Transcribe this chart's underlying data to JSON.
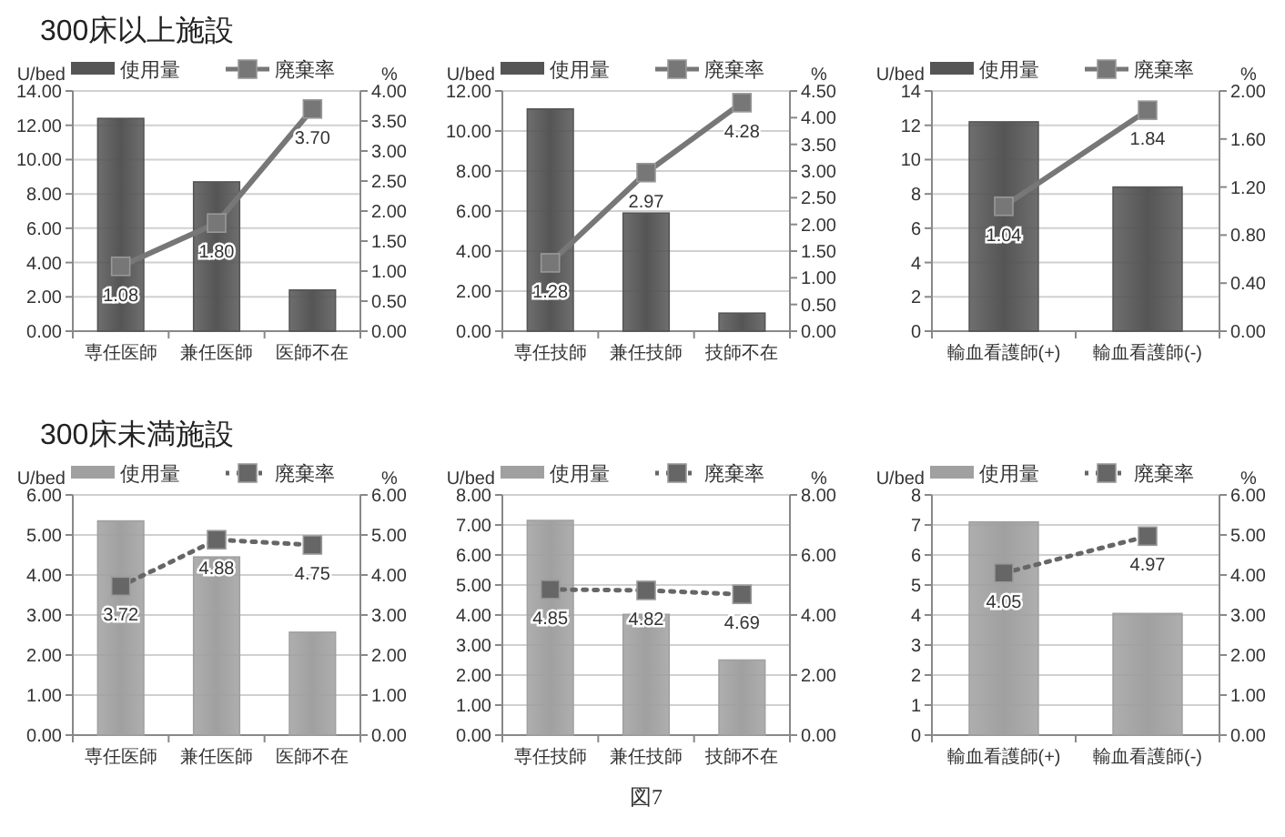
{
  "chart_data": [
    {
      "type": "bar",
      "title": "300床以上施設",
      "ylabel": "U/bed",
      "y2label": "%",
      "categories": [
        "専任医師",
        "兼任医師",
        "医師不在"
      ],
      "legend": "top",
      "grid": "y",
      "ylim": [
        0,
        14
      ],
      "yticks": [
        {
          "value": 0,
          "label": "0.00"
        },
        {
          "value": 2,
          "label": "2.00"
        },
        {
          "value": 4,
          "label": "4.00"
        },
        {
          "value": 6,
          "label": "6.00"
        },
        {
          "value": 8,
          "label": "8.00"
        },
        {
          "value": 10,
          "label": "10.00"
        },
        {
          "value": 12,
          "label": "12.00"
        },
        {
          "value": 14,
          "label": "14.00"
        }
      ],
      "y2lim": [
        0,
        4
      ],
      "y2ticks": [
        {
          "value": 0,
          "label": "0.00"
        },
        {
          "value": 0.5,
          "label": "0.50"
        },
        {
          "value": 1,
          "label": "1.00"
        },
        {
          "value": 1.5,
          "label": "1.50"
        },
        {
          "value": 2,
          "label": "2.00"
        },
        {
          "value": 2.5,
          "label": "2.50"
        },
        {
          "value": 3,
          "label": "3.00"
        },
        {
          "value": 3.5,
          "label": "3.50"
        },
        {
          "value": 4,
          "label": "4.00"
        }
      ],
      "series": [
        {
          "name": "使用量",
          "color": "#555555",
          "values": [
            12.4,
            8.7,
            2.4
          ]
        },
        {
          "name": "廃棄率",
          "type": "line",
          "axis": "y2",
          "color": "#777777",
          "marker": "square",
          "line_style": "solid",
          "values": [
            1.08,
            1.8,
            3.7
          ],
          "value_labels": [
            "1.08",
            "1.80",
            "3.70"
          ]
        }
      ]
    },
    {
      "type": "bar",
      "ylabel": "U/bed",
      "y2label": "%",
      "categories": [
        "専任技師",
        "兼任技師",
        "技師不在"
      ],
      "legend": "top",
      "grid": "y",
      "ylim": [
        0,
        12
      ],
      "yticks": [
        {
          "value": 0,
          "label": "0.00"
        },
        {
          "value": 2,
          "label": "2.00"
        },
        {
          "value": 4,
          "label": "4.00"
        },
        {
          "value": 6,
          "label": "6.00"
        },
        {
          "value": 8,
          "label": "8.00"
        },
        {
          "value": 10,
          "label": "10.00"
        },
        {
          "value": 12,
          "label": "12.00"
        }
      ],
      "y2lim": [
        0,
        4.5
      ],
      "y2ticks": [
        {
          "value": 0,
          "label": "0.00"
        },
        {
          "value": 0.5,
          "label": "0.50"
        },
        {
          "value": 1,
          "label": "1.00"
        },
        {
          "value": 1.5,
          "label": "1.50"
        },
        {
          "value": 2,
          "label": "2.00"
        },
        {
          "value": 2.5,
          "label": "2.50"
        },
        {
          "value": 3,
          "label": "3.00"
        },
        {
          "value": 3.5,
          "label": "3.50"
        },
        {
          "value": 4,
          "label": "4.00"
        },
        {
          "value": 4.5,
          "label": "4.50"
        }
      ],
      "series": [
        {
          "name": "使用量",
          "color": "#555555",
          "values": [
            11.1,
            5.9,
            0.9
          ]
        },
        {
          "name": "廃棄率",
          "type": "line",
          "axis": "y2",
          "color": "#777777",
          "marker": "square",
          "line_style": "solid",
          "values": [
            1.28,
            2.97,
            4.28
          ],
          "value_labels": [
            "1.28",
            "2.97",
            "4.28"
          ]
        }
      ]
    },
    {
      "type": "bar",
      "ylabel": "U/bed",
      "y2label": "%",
      "categories": [
        "輸血看護師(+)",
        "輸血看護師(-)"
      ],
      "legend": "top",
      "grid": "y",
      "ylim": [
        0,
        14
      ],
      "yticks": [
        0,
        2,
        4,
        6,
        8,
        10,
        12,
        14
      ],
      "y2lim": [
        0,
        2
      ],
      "y2ticks": [
        {
          "value": 0,
          "label": "0.00"
        },
        {
          "value": 0.4,
          "label": "0.40"
        },
        {
          "value": 0.8,
          "label": "0.80"
        },
        {
          "value": 1.2,
          "label": "1.20"
        },
        {
          "value": 1.6,
          "label": "1.60"
        },
        {
          "value": 2,
          "label": "2.00"
        }
      ],
      "series": [
        {
          "name": "使用量",
          "color": "#555555",
          "values": [
            12.2,
            8.4
          ]
        },
        {
          "name": "廃棄率",
          "type": "line",
          "axis": "y2",
          "color": "#777777",
          "marker": "square",
          "line_style": "solid",
          "values": [
            1.04,
            1.84
          ],
          "value_labels": [
            "1.04",
            "1.84"
          ]
        }
      ]
    },
    {
      "type": "bar",
      "title": "300床未満施設",
      "ylabel": "U/bed",
      "y2label": "%",
      "categories": [
        "専任医師",
        "兼任医師",
        "医師不在"
      ],
      "legend": "top",
      "grid": "y",
      "ylim": [
        0,
        6
      ],
      "yticks": [
        {
          "value": 0,
          "label": "0.00"
        },
        {
          "value": 1,
          "label": "1.00"
        },
        {
          "value": 2,
          "label": "2.00"
        },
        {
          "value": 3,
          "label": "3.00"
        },
        {
          "value": 4,
          "label": "4.00"
        },
        {
          "value": 5,
          "label": "5.00"
        },
        {
          "value": 6,
          "label": "6.00"
        }
      ],
      "y2lim": [
        0,
        6
      ],
      "y2ticks": [
        {
          "value": 0,
          "label": "0.00"
        },
        {
          "value": 1,
          "label": "1.00"
        },
        {
          "value": 2,
          "label": "2.00"
        },
        {
          "value": 3,
          "label": "3.00"
        },
        {
          "value": 4,
          "label": "4.00"
        },
        {
          "value": 5,
          "label": "5.00"
        },
        {
          "value": 6,
          "label": "6.00"
        }
      ],
      "series": [
        {
          "name": "使用量",
          "color": "#a0a0a0",
          "values": [
            5.35,
            4.45,
            2.57
          ]
        },
        {
          "name": "廃棄率",
          "type": "line",
          "axis": "y2",
          "color": "#666666",
          "marker": "square",
          "line_style": "dotted",
          "values": [
            3.72,
            4.88,
            4.75
          ],
          "value_labels": [
            "3.72",
            "4.88",
            "4.75"
          ]
        }
      ]
    },
    {
      "type": "bar",
      "ylabel": "U/bed",
      "y2label": "%",
      "categories": [
        "専任技師",
        "兼任技師",
        "技師不在"
      ],
      "legend": "top",
      "grid": "y",
      "annotations": [
        "図7"
      ],
      "ylim": [
        0,
        8
      ],
      "yticks": [
        {
          "value": 0,
          "label": "0.00"
        },
        {
          "value": 1,
          "label": "1.00"
        },
        {
          "value": 2,
          "label": "2.00"
        },
        {
          "value": 3,
          "label": "3.00"
        },
        {
          "value": 4,
          "label": "4.00"
        },
        {
          "value": 5,
          "label": "5.00"
        },
        {
          "value": 6,
          "label": "6.00"
        },
        {
          "value": 7,
          "label": "7.00"
        },
        {
          "value": 8,
          "label": "8.00"
        }
      ],
      "y2lim": [
        0,
        8
      ],
      "y2ticks": [
        {
          "value": 0,
          "label": "0.00"
        },
        {
          "value": 2,
          "label": "2.00"
        },
        {
          "value": 4,
          "label": "4.00"
        },
        {
          "value": 6,
          "label": "6.00"
        },
        {
          "value": 8,
          "label": "8.00"
        }
      ],
      "series": [
        {
          "name": "使用量",
          "color": "#a0a0a0",
          "values": [
            7.15,
            4.02,
            2.5
          ]
        },
        {
          "name": "廃棄率",
          "type": "line",
          "axis": "y2",
          "color": "#666666",
          "marker": "square",
          "line_style": "dotted",
          "values": [
            4.85,
            4.82,
            4.69
          ],
          "value_labels": [
            "4.85",
            "4.82",
            "4.69"
          ]
        }
      ]
    },
    {
      "type": "bar",
      "ylabel": "U/bed",
      "y2label": "%",
      "categories": [
        "輸血看護師(+)",
        "輸血看護師(-)"
      ],
      "legend": "top",
      "grid": "y",
      "ylim": [
        0,
        8
      ],
      "yticks": [
        0,
        1,
        2,
        3,
        4,
        5,
        6,
        7,
        8
      ],
      "y2lim": [
        0,
        6
      ],
      "y2ticks": [
        {
          "value": 0,
          "label": "0.00"
        },
        {
          "value": 1,
          "label": "1.00"
        },
        {
          "value": 2,
          "label": "2.00"
        },
        {
          "value": 3,
          "label": "3.00"
        },
        {
          "value": 4,
          "label": "4.00"
        },
        {
          "value": 5,
          "label": "5.00"
        },
        {
          "value": 6,
          "label": "6.00"
        }
      ],
      "series": [
        {
          "name": "使用量",
          "color": "#a0a0a0",
          "values": [
            7.1,
            4.05
          ]
        },
        {
          "name": "廃棄率",
          "type": "line",
          "axis": "y2",
          "color": "#666666",
          "marker": "square",
          "line_style": "dotted",
          "values": [
            4.05,
            4.97
          ],
          "value_labels": [
            "4.05",
            "4.97"
          ]
        }
      ]
    }
  ]
}
